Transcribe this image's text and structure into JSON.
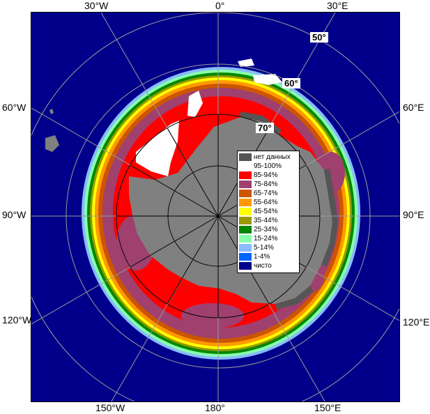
{
  "map": {
    "lon_labels": {
      "top_left": "30°W",
      "top_center": "0°",
      "top_right": "30°E",
      "left_upper": "60°W",
      "left_middle": "90°W",
      "left_lower": "120°W",
      "right_upper": "60°E",
      "right_middle": "90°E",
      "right_lower": "120°E",
      "bottom_left": "150°W",
      "bottom_center": "180°",
      "bottom_right": "150°E"
    },
    "lat_labels": {
      "lat50": "50°",
      "lat60": "60°",
      "lat70": "70°"
    },
    "colors": {
      "ocean_open": "#00008b",
      "land": "#808080",
      "no_data": "#555555",
      "ice_95_100": "#ffffff",
      "ice_85_94": "#ff0000",
      "ice_75_84": "#a0406e",
      "ice_65_74": "#cc5500",
      "ice_55_64": "#ff9900",
      "ice_45_54": "#ffff00",
      "ice_35_44": "#999900",
      "ice_25_34": "#008800",
      "ice_15_24": "#88ffaa",
      "ice_5_14": "#88bbff",
      "ice_1_4": "#0066ff",
      "grid_line": "#9a9a9a"
    }
  },
  "legend": {
    "items": [
      {
        "label": "нет данных",
        "color": "#555555"
      },
      {
        "label": "95-100%",
        "color": "#ffffff"
      },
      {
        "label": "85-94%",
        "color": "#ff0000"
      },
      {
        "label": "75-84%",
        "color": "#a0406e"
      },
      {
        "label": "65-74%",
        "color": "#cc5500"
      },
      {
        "label": "55-64%",
        "color": "#ff9900"
      },
      {
        "label": "45-54%",
        "color": "#ffff00"
      },
      {
        "label": "35-44%",
        "color": "#999900"
      },
      {
        "label": "25-34%",
        "color": "#008800"
      },
      {
        "label": "15-24%",
        "color": "#88ffaa"
      },
      {
        "label": "5-14%",
        "color": "#88bbff"
      },
      {
        "label": "1-4%",
        "color": "#0066ff"
      },
      {
        "label": "чисто",
        "color": "#00008b"
      }
    ]
  }
}
